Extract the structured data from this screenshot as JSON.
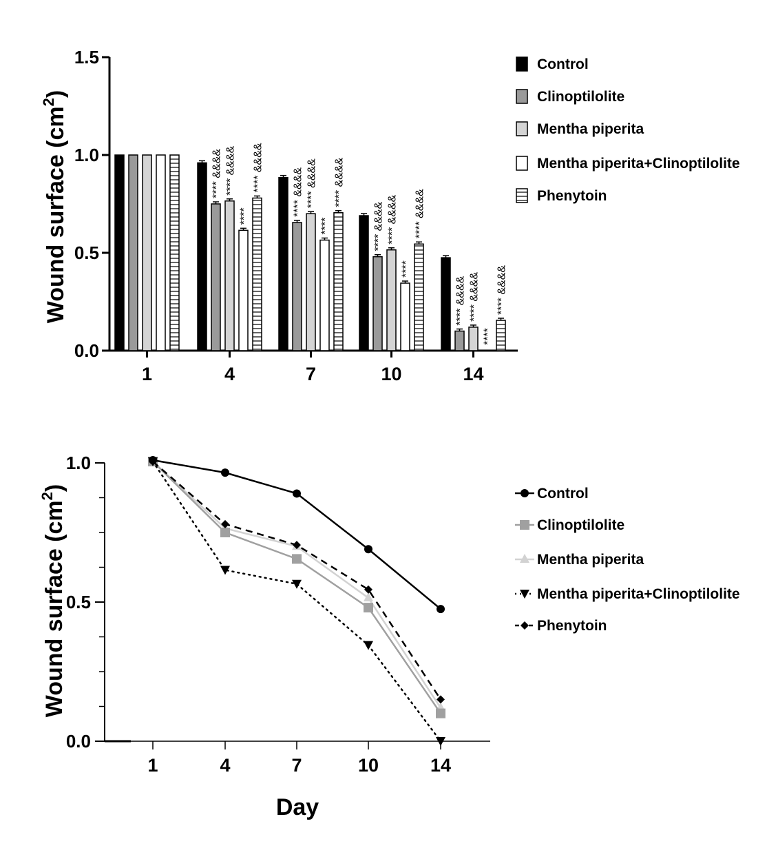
{
  "chart_data": [
    {
      "type": "bar",
      "xlabel": "",
      "ylabel": "Wound surface (cm",
      "ylabel_superscript": "2",
      "ylabel_close": ")",
      "ylim": [
        0,
        1.5
      ],
      "yticks": [
        "0.0",
        "0.5",
        "1.0",
        "1.5"
      ],
      "ytick_values": [
        0,
        0.5,
        1.0,
        1.5
      ],
      "categories": [
        "1",
        "4",
        "7",
        "10",
        "14"
      ],
      "legend_position": "right",
      "series": [
        {
          "name": "Control",
          "values": [
            1.0,
            0.96,
            0.885,
            0.69,
            0.475
          ],
          "fill": "#000000",
          "pattern": "solid"
        },
        {
          "name": "Clinoptilolite",
          "values": [
            1.0,
            0.75,
            0.655,
            0.48,
            0.1
          ],
          "fill": "#9a9a9a",
          "pattern": "solid"
        },
        {
          "name": "Mentha piperita",
          "values": [
            1.0,
            0.765,
            0.7,
            0.515,
            0.12
          ],
          "fill": "#d4d4d4",
          "pattern": "solid"
        },
        {
          "name": "Mentha piperita",
          "name_suffix": "+Clinoptilolite",
          "values": [
            1.0,
            0.615,
            0.565,
            0.345,
            0.0
          ],
          "fill": "#ffffff",
          "pattern": "solid"
        },
        {
          "name": "Phenytoin",
          "values": [
            1.0,
            0.78,
            0.705,
            0.545,
            0.155
          ],
          "fill": "#ffffff",
          "pattern": "horizontal-lines"
        }
      ],
      "annotations": [
        [
          null,
          null,
          null,
          null,
          null
        ],
        [
          null,
          "**** &&&&",
          "**** &&&&",
          "****",
          "**** &&&&"
        ],
        [
          null,
          "**** &&&&",
          "**** &&&&",
          "****",
          "**** &&&&"
        ],
        [
          null,
          "**** &&&&",
          "**** &&&&",
          "****",
          "**** &&&&"
        ],
        [
          null,
          "**** &&&&",
          "**** &&&&",
          "****",
          "**** &&&&"
        ]
      ]
    },
    {
      "type": "line",
      "xlabel": "Day",
      "ylabel": "Wound surface (cm",
      "ylabel_superscript": "2",
      "ylabel_close": ")",
      "ylim": [
        0,
        1.0
      ],
      "yticks": [
        "0.0",
        "0.5",
        "1.0"
      ],
      "ytick_values": [
        0,
        0.5,
        1.0
      ],
      "x": [
        "1",
        "4",
        "7",
        "10",
        "14"
      ],
      "legend_position": "right",
      "series": [
        {
          "name": "Control",
          "values": [
            1.01,
            0.965,
            0.89,
            0.69,
            0.475
          ],
          "color": "#000000",
          "dash": "solid",
          "marker": "circle"
        },
        {
          "name": "Clinoptilolite",
          "values": [
            1.005,
            0.75,
            0.655,
            0.48,
            0.1
          ],
          "color": "#a0a0a0",
          "dash": "solid",
          "marker": "square"
        },
        {
          "name": "Mentha piperita",
          "values": [
            1.005,
            0.765,
            0.7,
            0.515,
            0.12
          ],
          "color": "#d2d2d2",
          "dash": "solid",
          "marker": "triangle-up"
        },
        {
          "name": "Mentha piperita",
          "name_suffix": "+Clinoptilolite",
          "values": [
            1.005,
            0.615,
            0.565,
            0.345,
            0.0
          ],
          "color": "#000000",
          "dash": "dotted",
          "marker": "triangle-down"
        },
        {
          "name": "Phenytoin",
          "values": [
            1.005,
            0.78,
            0.705,
            0.545,
            0.15
          ],
          "color": "#000000",
          "dash": "dashed",
          "marker": "diamond"
        }
      ]
    }
  ]
}
